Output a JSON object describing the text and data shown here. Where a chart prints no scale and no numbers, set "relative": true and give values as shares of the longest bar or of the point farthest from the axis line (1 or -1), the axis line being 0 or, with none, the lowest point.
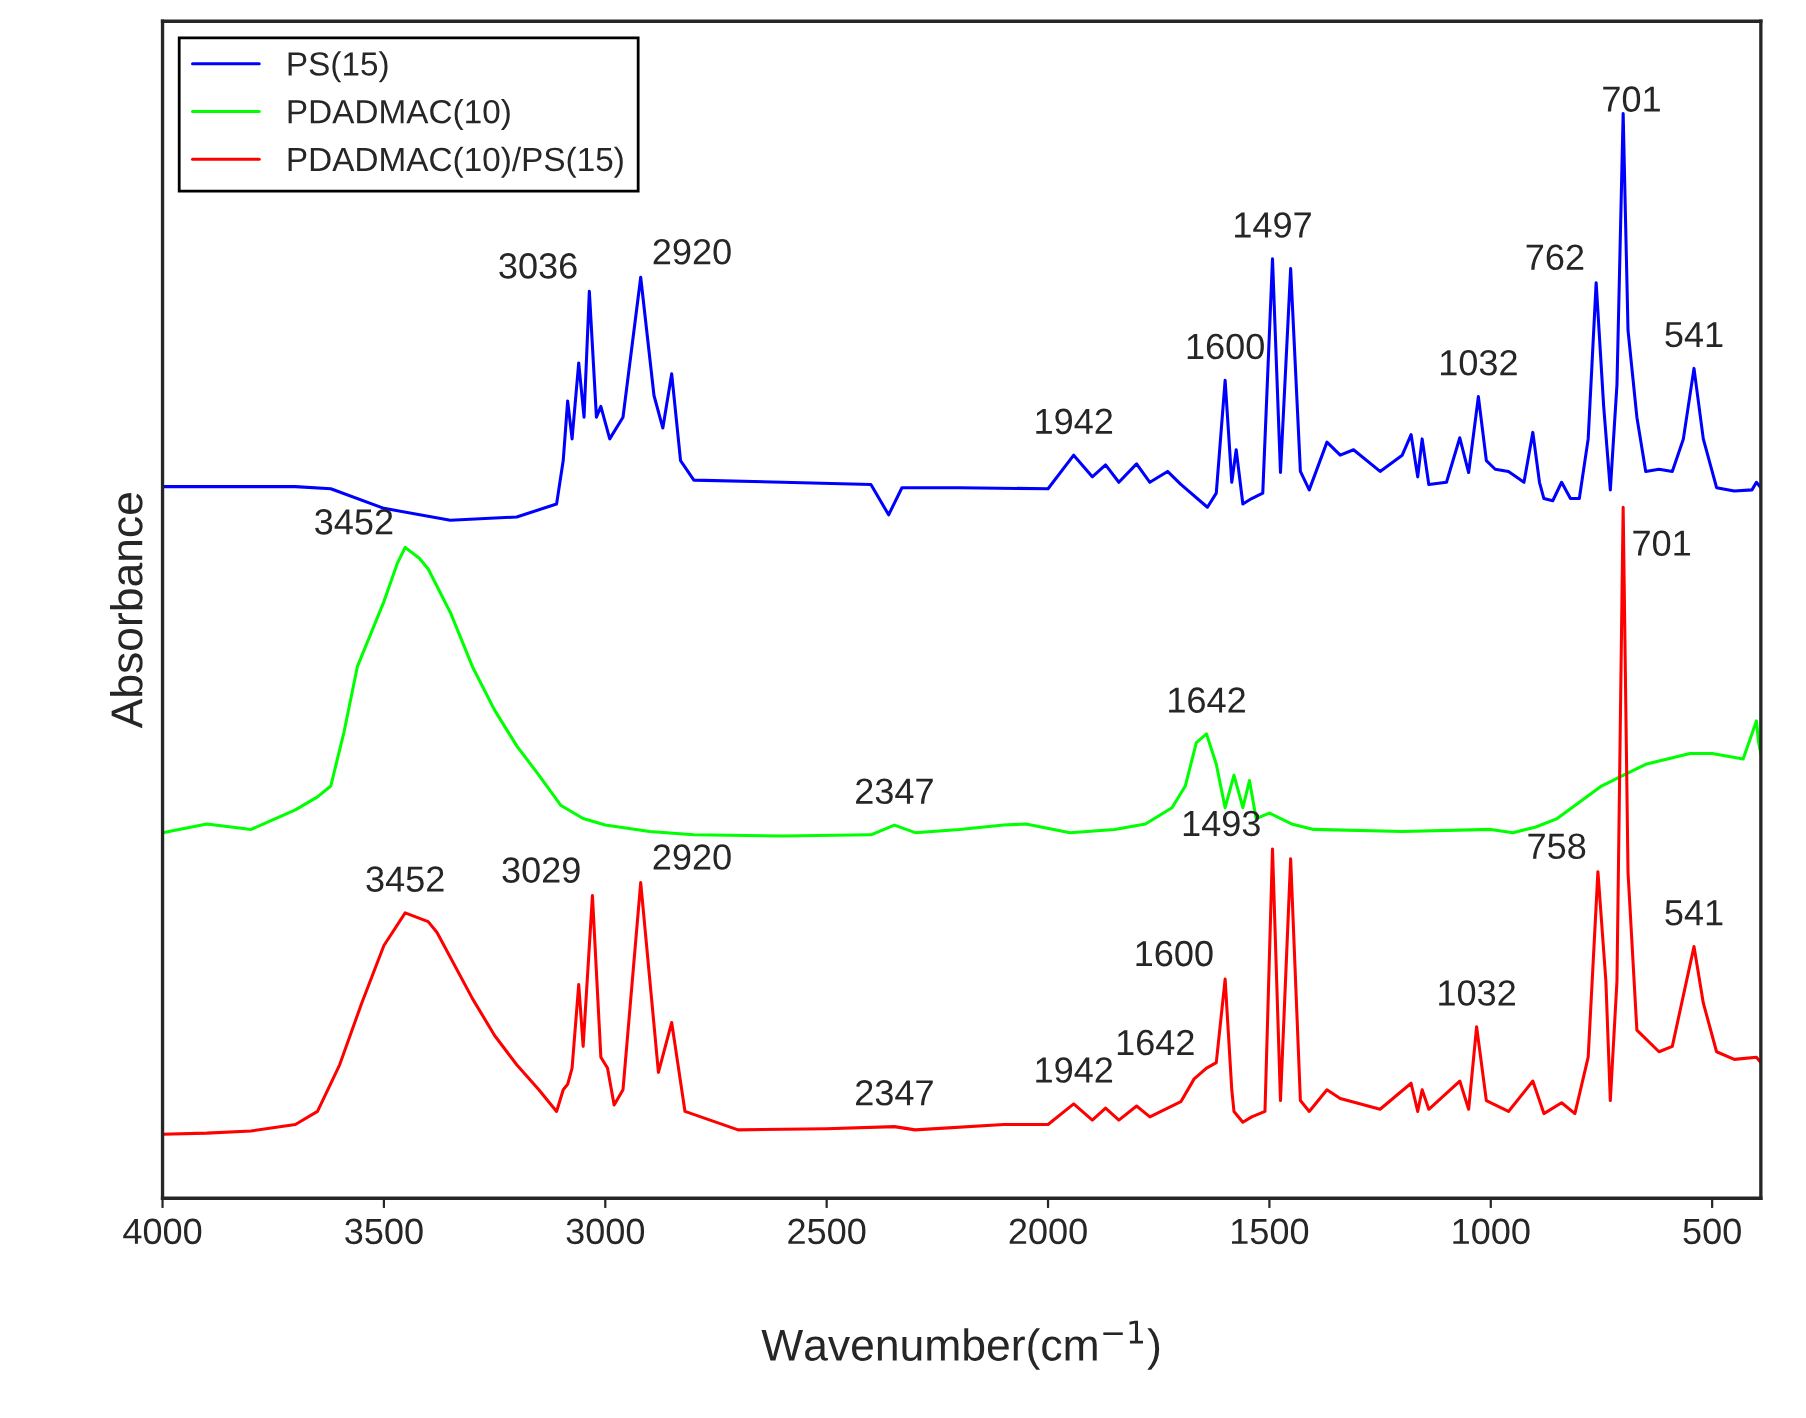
{
  "chart_data": {
    "type": "line",
    "relative": true,
    "xlabel": "Wavenumber(cm$^{−1}$)",
    "ylabel": "Absorbance",
    "xlim": [
      4000,
      390
    ],
    "xticks": [
      4000,
      3500,
      3000,
      2500,
      2000,
      1500,
      1000,
      500
    ],
    "grid": false,
    "legend": "top left",
    "tick_labels": "x",
    "series": [
      {
        "name": "PS(15)",
        "color": "#0000ff",
        "x": [
          4000,
          3700,
          3620,
          3500,
          3350,
          3200,
          3110,
          3095,
          3085,
          3075,
          3060,
          3048,
          3036,
          3020,
          3010,
          2990,
          2960,
          2920,
          2890,
          2870,
          2850,
          2830,
          2800,
          2600,
          2400,
          2360,
          2330,
          2200,
          2000,
          1942,
          1900,
          1870,
          1840,
          1800,
          1770,
          1730,
          1700,
          1640,
          1620,
          1600,
          1585,
          1575,
          1560,
          1540,
          1515,
          1493,
          1475,
          1452,
          1430,
          1410,
          1370,
          1340,
          1310,
          1250,
          1200,
          1180,
          1165,
          1155,
          1140,
          1100,
          1070,
          1050,
          1028,
          1010,
          990,
          960,
          925,
          905,
          890,
          880,
          860,
          840,
          820,
          800,
          780,
          762,
          745,
          730,
          715,
          701,
          690,
          670,
          650,
          620,
          590,
          565,
          541,
          520,
          490,
          450,
          410,
          400,
          390
        ],
        "values": [
          0.656,
          0.656,
          0.654,
          0.636,
          0.625,
          0.628,
          0.64,
          0.68,
          0.735,
          0.7,
          0.77,
          0.72,
          0.836,
          0.72,
          0.73,
          0.7,
          0.72,
          0.849,
          0.74,
          0.71,
          0.76,
          0.68,
          0.662,
          0.66,
          0.658,
          0.63,
          0.655,
          0.655,
          0.654,
          0.685,
          0.665,
          0.676,
          0.66,
          0.677,
          0.66,
          0.67,
          0.658,
          0.637,
          0.65,
          0.754,
          0.66,
          0.69,
          0.64,
          0.645,
          0.65,
          0.866,
          0.669,
          0.857,
          0.67,
          0.653,
          0.697,
          0.685,
          0.69,
          0.67,
          0.685,
          0.704,
          0.665,
          0.7,
          0.658,
          0.66,
          0.701,
          0.669,
          0.739,
          0.68,
          0.672,
          0.67,
          0.66,
          0.706,
          0.66,
          0.645,
          0.643,
          0.66,
          0.645,
          0.645,
          0.7,
          0.844,
          0.73,
          0.653,
          0.75,
          1.0,
          0.8,
          0.72,
          0.67,
          0.672,
          0.67,
          0.7,
          0.765,
          0.7,
          0.655,
          0.652,
          0.653,
          0.66,
          0.655
        ]
      },
      {
        "name": "PDADMAC(10)",
        "color": "#00ff00",
        "x": [
          4000,
          3900,
          3800,
          3700,
          3650,
          3620,
          3590,
          3560,
          3530,
          3500,
          3470,
          3452,
          3420,
          3400,
          3350,
          3300,
          3250,
          3200,
          3150,
          3100,
          3050,
          3000,
          2900,
          2800,
          2600,
          2400,
          2347,
          2300,
          2200,
          2100,
          2050,
          1950,
          1850,
          1780,
          1720,
          1690,
          1665,
          1642,
          1620,
          1600,
          1580,
          1560,
          1545,
          1530,
          1500,
          1450,
          1400,
          1200,
          1000,
          950,
          900,
          850,
          800,
          750,
          700,
          650,
          550,
          500,
          430,
          400,
          395,
          390
        ],
        "values": [
          0.337,
          0.345,
          0.34,
          0.358,
          0.37,
          0.38,
          0.43,
          0.49,
          0.52,
          0.55,
          0.585,
          0.6,
          0.59,
          0.58,
          0.54,
          0.49,
          0.45,
          0.417,
          0.39,
          0.362,
          0.35,
          0.344,
          0.338,
          0.335,
          0.334,
          0.335,
          0.344,
          0.337,
          0.34,
          0.344,
          0.345,
          0.337,
          0.34,
          0.345,
          0.36,
          0.38,
          0.42,
          0.428,
          0.4,
          0.36,
          0.39,
          0.36,
          0.385,
          0.35,
          0.355,
          0.345,
          0.34,
          0.338,
          0.34,
          0.337,
          0.342,
          0.35,
          0.365,
          0.38,
          0.39,
          0.4,
          0.41,
          0.41,
          0.405,
          0.44,
          0.42,
          0.41
        ]
      },
      {
        "name": "PDADMAC(10)/PS(15)",
        "color": "#ff0000",
        "x": [
          4000,
          3900,
          3800,
          3700,
          3650,
          3600,
          3550,
          3500,
          3452,
          3400,
          3380,
          3300,
          3250,
          3200,
          3150,
          3110,
          3095,
          3085,
          3075,
          3060,
          3050,
          3029,
          3010,
          2995,
          2980,
          2960,
          2920,
          2890,
          2880,
          2850,
          2820,
          2700,
          2500,
          2347,
          2300,
          2100,
          2000,
          1942,
          1900,
          1870,
          1840,
          1800,
          1770,
          1700,
          1670,
          1642,
          1620,
          1600,
          1585,
          1580,
          1560,
          1540,
          1510,
          1493,
          1475,
          1452,
          1430,
          1410,
          1370,
          1340,
          1250,
          1180,
          1165,
          1155,
          1140,
          1070,
          1050,
          1032,
          1010,
          960,
          905,
          880,
          840,
          810,
          780,
          758,
          740,
          730,
          715,
          701,
          690,
          670,
          620,
          590,
          541,
          520,
          490,
          450,
          400,
          390
        ],
        "values": [
          0.059,
          0.06,
          0.062,
          0.068,
          0.08,
          0.123,
          0.18,
          0.233,
          0.263,
          0.255,
          0.245,
          0.184,
          0.15,
          0.123,
          0.1,
          0.08,
          0.1,
          0.105,
          0.12,
          0.197,
          0.14,
          0.279,
          0.13,
          0.12,
          0.086,
          0.1,
          0.291,
          0.16,
          0.116,
          0.162,
          0.08,
          0.063,
          0.064,
          0.066,
          0.063,
          0.068,
          0.068,
          0.087,
          0.072,
          0.083,
          0.072,
          0.085,
          0.075,
          0.089,
          0.11,
          0.12,
          0.125,
          0.202,
          0.1,
          0.08,
          0.07,
          0.075,
          0.08,
          0.322,
          0.09,
          0.313,
          0.09,
          0.08,
          0.1,
          0.092,
          0.082,
          0.106,
          0.08,
          0.1,
          0.082,
          0.108,
          0.082,
          0.158,
          0.09,
          0.08,
          0.108,
          0.078,
          0.088,
          0.078,
          0.13,
          0.301,
          0.2,
          0.09,
          0.2,
          0.637,
          0.3,
          0.155,
          0.135,
          0.14,
          0.232,
          0.18,
          0.135,
          0.128,
          0.13,
          0.125
        ]
      }
    ],
    "annotations": [
      {
        "text": "3036",
        "x": 3036,
        "y": 0.836
      },
      {
        "text": "2920",
        "x": 2920,
        "y": 0.849
      },
      {
        "text": "1942",
        "x": 1942,
        "y": 0.685
      },
      {
        "text": "1600",
        "x": 1600,
        "y": 0.754
      },
      {
        "text": "1497",
        "x": 1493,
        "y": 0.866
      },
      {
        "text": "1032",
        "x": 1028,
        "y": 0.739
      },
      {
        "text": "762",
        "x": 762,
        "y": 0.844
      },
      {
        "text": "701",
        "x": 701,
        "y": 1.0
      },
      {
        "text": "541",
        "x": 541,
        "y": 0.765
      },
      {
        "text": "3452",
        "x": 3452,
        "y": 0.6
      },
      {
        "text": "1642",
        "x": 1642,
        "y": 0.428
      },
      {
        "text": "2347",
        "x": 2347,
        "y": 0.344
      },
      {
        "text": "701",
        "x": 701,
        "y": 0.637
      },
      {
        "text": "3452",
        "x": 3452,
        "y": 0.263
      },
      {
        "text": "3029",
        "x": 3029,
        "y": 0.279
      },
      {
        "text": "2920",
        "x": 2920,
        "y": 0.291
      },
      {
        "text": "2347",
        "x": 2347,
        "y": 0.066
      },
      {
        "text": "1942",
        "x": 1942,
        "y": 0.087
      },
      {
        "text": "1642",
        "x": 1642,
        "y": 0.12
      },
      {
        "text": "1600",
        "x": 1600,
        "y": 0.202
      },
      {
        "text": "1493",
        "x": 1493,
        "y": 0.322
      },
      {
        "text": "1032",
        "x": 1032,
        "y": 0.158
      },
      {
        "text": "758",
        "x": 758,
        "y": 0.301
      },
      {
        "text": "541",
        "x": 541,
        "y": 0.232
      }
    ]
  }
}
